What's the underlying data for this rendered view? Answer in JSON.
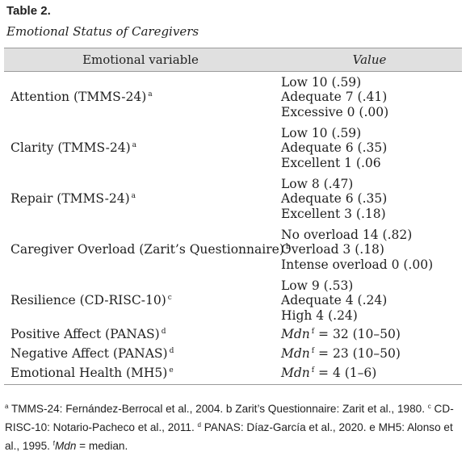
{
  "table": {
    "title": "Table 2.",
    "subtitle": "Emotional Status of Caregivers",
    "headers": {
      "variable": "Emotional variable",
      "value": "Value"
    },
    "rows": [
      {
        "label": "Attention (TMMS-24)",
        "mark": "a",
        "values": [
          "Low 10 (.59)",
          "Adequate 7 (.41)",
          "Excessive 0 (.00)"
        ]
      },
      {
        "label": "Clarity (TMMS-24)",
        "mark": "a",
        "values": [
          "Low 10 (.59)",
          "Adequate 6 (.35)",
          "Excellent 1 (.06"
        ]
      },
      {
        "label": "Repair (TMMS-24)",
        "mark": "a",
        "values": [
          "Low 8 (.47)",
          "Adequate 6 (.35)",
          "Excellent 3 (.18)"
        ]
      },
      {
        "label": "Caregiver Overload (Zarit’s Questionnaire)",
        "mark": "b",
        "values": [
          "No overload 14 (.82)",
          "Overload 3 (.18)",
          "Intense overload 0 (.00)"
        ]
      },
      {
        "label": "Resilience (CD-RISC-10)",
        "mark": "c",
        "values": [
          "Low 9 (.53)",
          "Adequate 4 (.24)",
          "High 4 (.24)"
        ]
      },
      {
        "label": "Positive Affect (PANAS)",
        "mark": "d",
        "mdn": "Mdn",
        "mdn_mark": "f",
        "mdn_value": " = 32 (10–50)"
      },
      {
        "label": "Negative Affect (PANAS)",
        "mark": "d",
        "mdn": "Mdn",
        "mdn_mark": "f",
        "mdn_value": " = 23 (10–50)"
      },
      {
        "label": "Emotional Health (MH5)",
        "mark": "e",
        "mdn": "Mdn",
        "mdn_mark": "f",
        "mdn_value": " = 4 (1–6)"
      }
    ]
  },
  "footnote": {
    "a_mark": "a",
    "a_text": " TMMS-24: Fernández-Berrocal et al., 2004. b Zarit’s Questionnaire: Zarit et al., 1980. ",
    "c_mark": "c",
    "c_text": " CD- RISC-10: Notario-Pacheco et al., 2011. ",
    "d_mark": "d",
    "d_text": " PANAS: Díaz-García et al., 2020. e MH5: Alonso et al., 1995. ",
    "f_mark": "f",
    "mdn": "Mdn",
    "f_text": " = median."
  }
}
